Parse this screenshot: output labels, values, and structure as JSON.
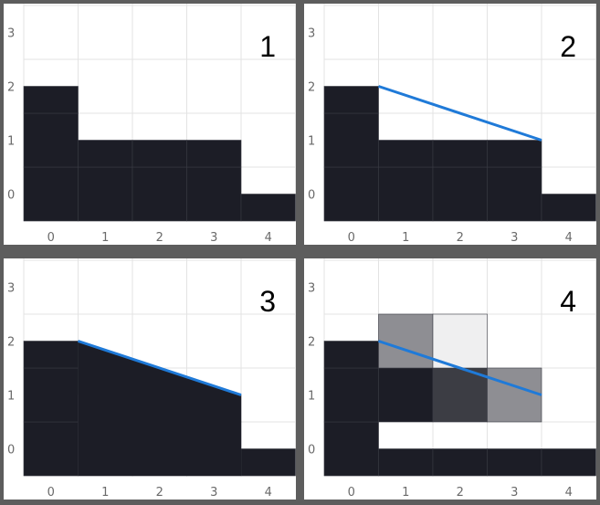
{
  "colors": {
    "filled": "#1c1d26",
    "grid": "#e3e3e3",
    "grid_dark": "#3a3b44",
    "line": "#1f7ad8",
    "tick_text": "#6a6a6a",
    "separator": "#5d5d5d"
  },
  "x_ticks": [
    "0",
    "1",
    "2",
    "3",
    "4"
  ],
  "y_ticks": [
    "0",
    "1",
    "2",
    "3"
  ],
  "panels": [
    {
      "label": "1",
      "heights": [
        2.5,
        1.5,
        1.5,
        1.5,
        0.5
      ],
      "show_line": false,
      "fill_under_line": false,
      "line": null,
      "partial_cells": []
    },
    {
      "label": "2",
      "heights": [
        2.5,
        1.5,
        1.5,
        1.5,
        0.5
      ],
      "show_line": true,
      "fill_under_line": false,
      "line": {
        "x1": 0.5,
        "y1": 2.0,
        "x2": 3.5,
        "y2": 1.0
      },
      "partial_cells": []
    },
    {
      "label": "3",
      "heights": [
        2.5,
        1.5,
        1.5,
        1.5,
        0.5
      ],
      "show_line": true,
      "fill_under_line": true,
      "line": {
        "x1": 0.5,
        "y1": 2.0,
        "x2": 3.5,
        "y2": 1.0
      },
      "partial_cells": []
    },
    {
      "label": "4",
      "heights": [
        2.5,
        0.5,
        0.5,
        0.5,
        0.5
      ],
      "show_line": true,
      "fill_under_line": false,
      "line": {
        "x1": 0.5,
        "y1": 2.0,
        "x2": 3.5,
        "y2": 1.0
      },
      "partial_cells": [
        {
          "col": 1,
          "row": 1,
          "coverage": 1.0
        },
        {
          "col": 1,
          "row": 2,
          "coverage": 0.5
        },
        {
          "col": 2,
          "row": 1,
          "coverage": 0.86
        },
        {
          "col": 2,
          "row": 2,
          "coverage": 0.07
        },
        {
          "col": 3,
          "row": 1,
          "coverage": 0.5
        }
      ]
    }
  ]
}
